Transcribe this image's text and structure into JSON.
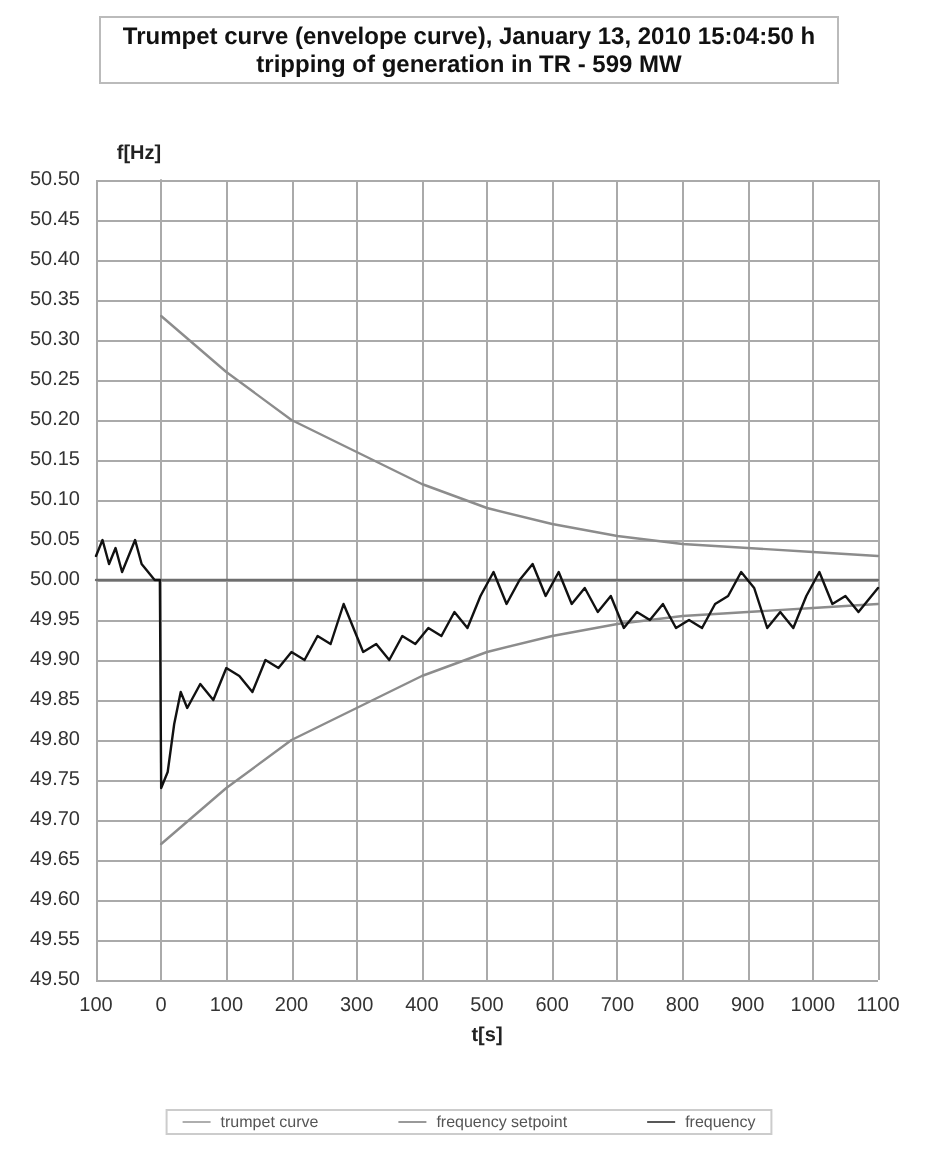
{
  "chart_data": {
    "type": "line",
    "title": "Trumpet curve (envelope curve), January 13, 2010 15:04:50 h",
    "subtitle": "tripping of generation in TR - 599 MW",
    "xlabel": "t[s]",
    "ylabel": "f[Hz]",
    "xlim": [
      -100,
      1100
    ],
    "xticks": [
      {
        "value": -100,
        "label": "100"
      },
      0,
      100,
      200,
      300,
      400,
      500,
      600,
      700,
      800,
      900,
      1000,
      1100
    ],
    "ylim": [
      49.5,
      50.5
    ],
    "yticks": [
      {
        "value": 49.5,
        "label": "49.50"
      },
      49.55,
      {
        "value": 49.6,
        "label": "49.60"
      },
      49.65,
      {
        "value": 49.7,
        "label": "49.70"
      },
      49.75,
      {
        "value": 49.8,
        "label": "49.80"
      },
      49.85,
      {
        "value": 49.9,
        "label": "49.90"
      },
      49.95,
      {
        "value": 50,
        "label": "50.00"
      },
      50.05,
      {
        "value": 50.1,
        "label": "50.10"
      },
      50.15,
      {
        "value": 50.2,
        "label": "50.20"
      },
      50.25,
      {
        "value": 50.3,
        "label": "50.30"
      },
      50.35,
      {
        "value": 50.4,
        "label": "50.40"
      },
      50.45,
      {
        "value": 50.5,
        "label": "50.50"
      }
    ],
    "grid": true,
    "legend": "bottom",
    "marker": "none",
    "series": [
      {
        "name": "trumpet curve",
        "color": "#8c8c8c",
        "x": [
          0,
          100,
          200,
          300,
          400,
          500,
          600,
          700,
          800,
          900,
          1000,
          1100
        ],
        "values": [
          50.33,
          50.26,
          50.2,
          50.16,
          50.12,
          50.09,
          50.07,
          50.055,
          50.045,
          50.04,
          50.035,
          50.03
        ]
      },
      {
        "color": "#8c8c8c",
        "x": [
          0,
          100,
          200,
          300,
          400,
          500,
          600,
          700,
          800,
          900,
          1000,
          1100
        ],
        "values": [
          49.67,
          49.74,
          49.8,
          49.84,
          49.88,
          49.91,
          49.93,
          49.945,
          49.955,
          49.96,
          49.965,
          49.97
        ]
      },
      {
        "name": "frequency setpoint",
        "color": "#6e6e6e",
        "x": [
          -100,
          1100
        ],
        "values": [
          50,
          50
        ]
      },
      {
        "name": "frequency",
        "color": "#111111",
        "x": [
          -100,
          -90,
          -80,
          -70,
          -60,
          -50,
          -40,
          -30,
          -20,
          -10,
          -2,
          0,
          10,
          20,
          30,
          40,
          60,
          80,
          100,
          120,
          140,
          160,
          180,
          200,
          220,
          240,
          260,
          280,
          290,
          310,
          330,
          350,
          370,
          390,
          410,
          430,
          450,
          470,
          490,
          510,
          530,
          550,
          570,
          590,
          610,
          630,
          650,
          670,
          690,
          710,
          730,
          750,
          770,
          790,
          810,
          830,
          850,
          870,
          890,
          910,
          930,
          950,
          970,
          990,
          1010,
          1030,
          1050,
          1070,
          1090,
          1100
        ],
        "values": [
          50.03,
          50.05,
          50.02,
          50.04,
          50.01,
          50.03,
          50.05,
          50.02,
          50.01,
          50.0,
          50.0,
          49.74,
          49.76,
          49.82,
          49.86,
          49.84,
          49.87,
          49.85,
          49.89,
          49.88,
          49.86,
          49.9,
          49.89,
          49.91,
          49.9,
          49.93,
          49.92,
          49.97,
          49.95,
          49.91,
          49.92,
          49.9,
          49.93,
          49.92,
          49.94,
          49.93,
          49.96,
          49.94,
          49.98,
          50.01,
          49.97,
          50.0,
          50.02,
          49.98,
          50.01,
          49.97,
          49.99,
          49.96,
          49.98,
          49.94,
          49.96,
          49.95,
          49.97,
          49.94,
          49.95,
          49.94,
          49.97,
          49.98,
          50.01,
          49.99,
          49.94,
          49.96,
          49.94,
          49.98,
          50.01,
          49.97,
          49.98,
          49.96,
          49.98,
          49.99
        ]
      }
    ]
  }
}
